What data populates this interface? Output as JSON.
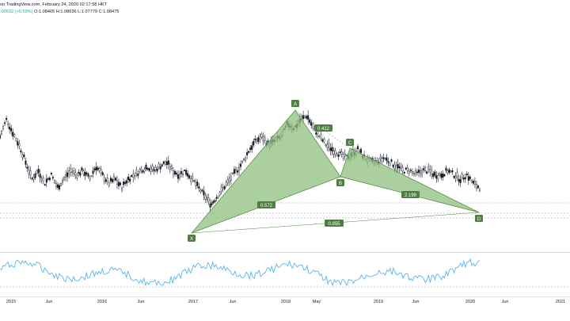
{
  "header": {
    "line1": "on TradingView.com, February 24, 2020 02:17:58 HKT",
    "change": ".00632 (+0.59%)",
    "ohlc": "O:1.08405 H:1.08636 L:1.07779 C:1.08475"
  },
  "colors": {
    "candle": "#131722",
    "pattern_fill": "#8fbf7f",
    "pattern_stroke": "#4c8a3c",
    "label_bg": "#4d7e43",
    "oscillator": "#5ab5ec",
    "dashed": "#9598a1"
  },
  "chart_data": {
    "type": "candlestick",
    "xaxis_labels": [
      "2015",
      "Jun",
      "2016",
      "Jun",
      "2017",
      "Jun",
      "2018",
      "May",
      "2019",
      "Jun",
      "2020",
      "Jun",
      "2021"
    ],
    "harmonic_points": [
      "X",
      "A",
      "B",
      "C",
      "D"
    ],
    "ratios": [
      "0.412",
      "0.572",
      "2.199",
      "0.855"
    ],
    "price_path": [
      [
        1,
        1.2
      ],
      [
        2,
        1.24
      ],
      [
        3,
        1.21
      ],
      [
        4,
        1.18
      ],
      [
        5,
        1.14
      ],
      [
        6,
        1.1
      ],
      [
        7,
        1.12
      ],
      [
        8,
        1.09
      ],
      [
        9,
        1.11
      ],
      [
        10,
        1.08
      ],
      [
        11,
        1.1
      ],
      [
        12,
        1.12
      ],
      [
        13,
        1.11
      ],
      [
        14,
        1.12
      ],
      [
        15,
        1.1
      ],
      [
        16,
        1.13
      ],
      [
        17,
        1.11
      ],
      [
        18,
        1.09
      ],
      [
        19,
        1.1
      ],
      [
        20,
        1.08
      ],
      [
        21,
        1.1
      ],
      [
        22,
        1.11
      ],
      [
        23,
        1.12
      ],
      [
        24,
        1.13
      ],
      [
        25,
        1.12
      ],
      [
        26,
        1.13
      ],
      [
        27,
        1.14
      ],
      [
        28,
        1.12
      ],
      [
        29,
        1.11
      ],
      [
        30,
        1.12
      ],
      [
        31,
        1.1
      ],
      [
        32,
        1.08
      ],
      [
        33,
        1.06
      ],
      [
        34,
        1.04
      ],
      [
        35,
        1.06
      ],
      [
        36,
        1.08
      ],
      [
        37,
        1.1
      ],
      [
        38,
        1.12
      ],
      [
        39,
        1.14
      ],
      [
        40,
        1.17
      ],
      [
        41,
        1.19
      ],
      [
        42,
        1.2
      ],
      [
        43,
        1.18
      ],
      [
        44,
        1.19
      ],
      [
        45,
        1.2
      ],
      [
        46,
        1.23
      ],
      [
        47,
        1.22
      ],
      [
        48,
        1.24
      ],
      [
        49,
        1.25
      ],
      [
        50,
        1.22
      ],
      [
        51,
        1.2
      ],
      [
        52,
        1.18
      ],
      [
        53,
        1.17
      ],
      [
        54,
        1.16
      ],
      [
        55,
        1.15
      ],
      [
        56,
        1.16
      ],
      [
        57,
        1.17
      ],
      [
        58,
        1.15
      ],
      [
        59,
        1.14
      ],
      [
        60,
        1.14
      ],
      [
        61,
        1.15
      ],
      [
        62,
        1.14
      ],
      [
        63,
        1.13
      ],
      [
        64,
        1.12
      ],
      [
        65,
        1.12
      ],
      [
        66,
        1.11
      ],
      [
        67,
        1.12
      ],
      [
        68,
        1.12
      ],
      [
        69,
        1.11
      ],
      [
        70,
        1.11
      ],
      [
        71,
        1.12
      ],
      [
        72,
        1.11
      ],
      [
        73,
        1.1
      ],
      [
        74,
        1.11
      ],
      [
        75,
        1.09
      ],
      [
        76,
        1.08
      ]
    ]
  }
}
